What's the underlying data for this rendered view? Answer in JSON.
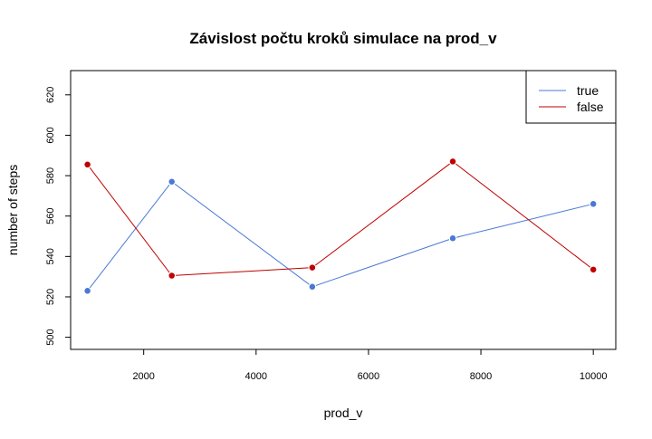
{
  "chart_data": {
    "type": "line",
    "title": "Závislost počtu kroků simulace na prod_v",
    "xlabel": "prod_v",
    "ylabel": "number of steps",
    "x": [
      1000,
      2500,
      5000,
      7500,
      10000
    ],
    "xlim": [
      700,
      10400
    ],
    "ylim": [
      494,
      632
    ],
    "xticks": [
      2000,
      4000,
      6000,
      8000,
      10000
    ],
    "yticks": [
      500,
      520,
      540,
      560,
      580,
      600,
      620
    ],
    "legend_position": "top-right",
    "series": [
      {
        "name": "true",
        "color": "#4a78d6",
        "values": [
          523,
          577,
          525,
          549,
          566
        ]
      },
      {
        "name": "false",
        "color": "#c00000",
        "values": [
          585.5,
          530.5,
          534.5,
          587,
          533.5
        ]
      }
    ]
  }
}
